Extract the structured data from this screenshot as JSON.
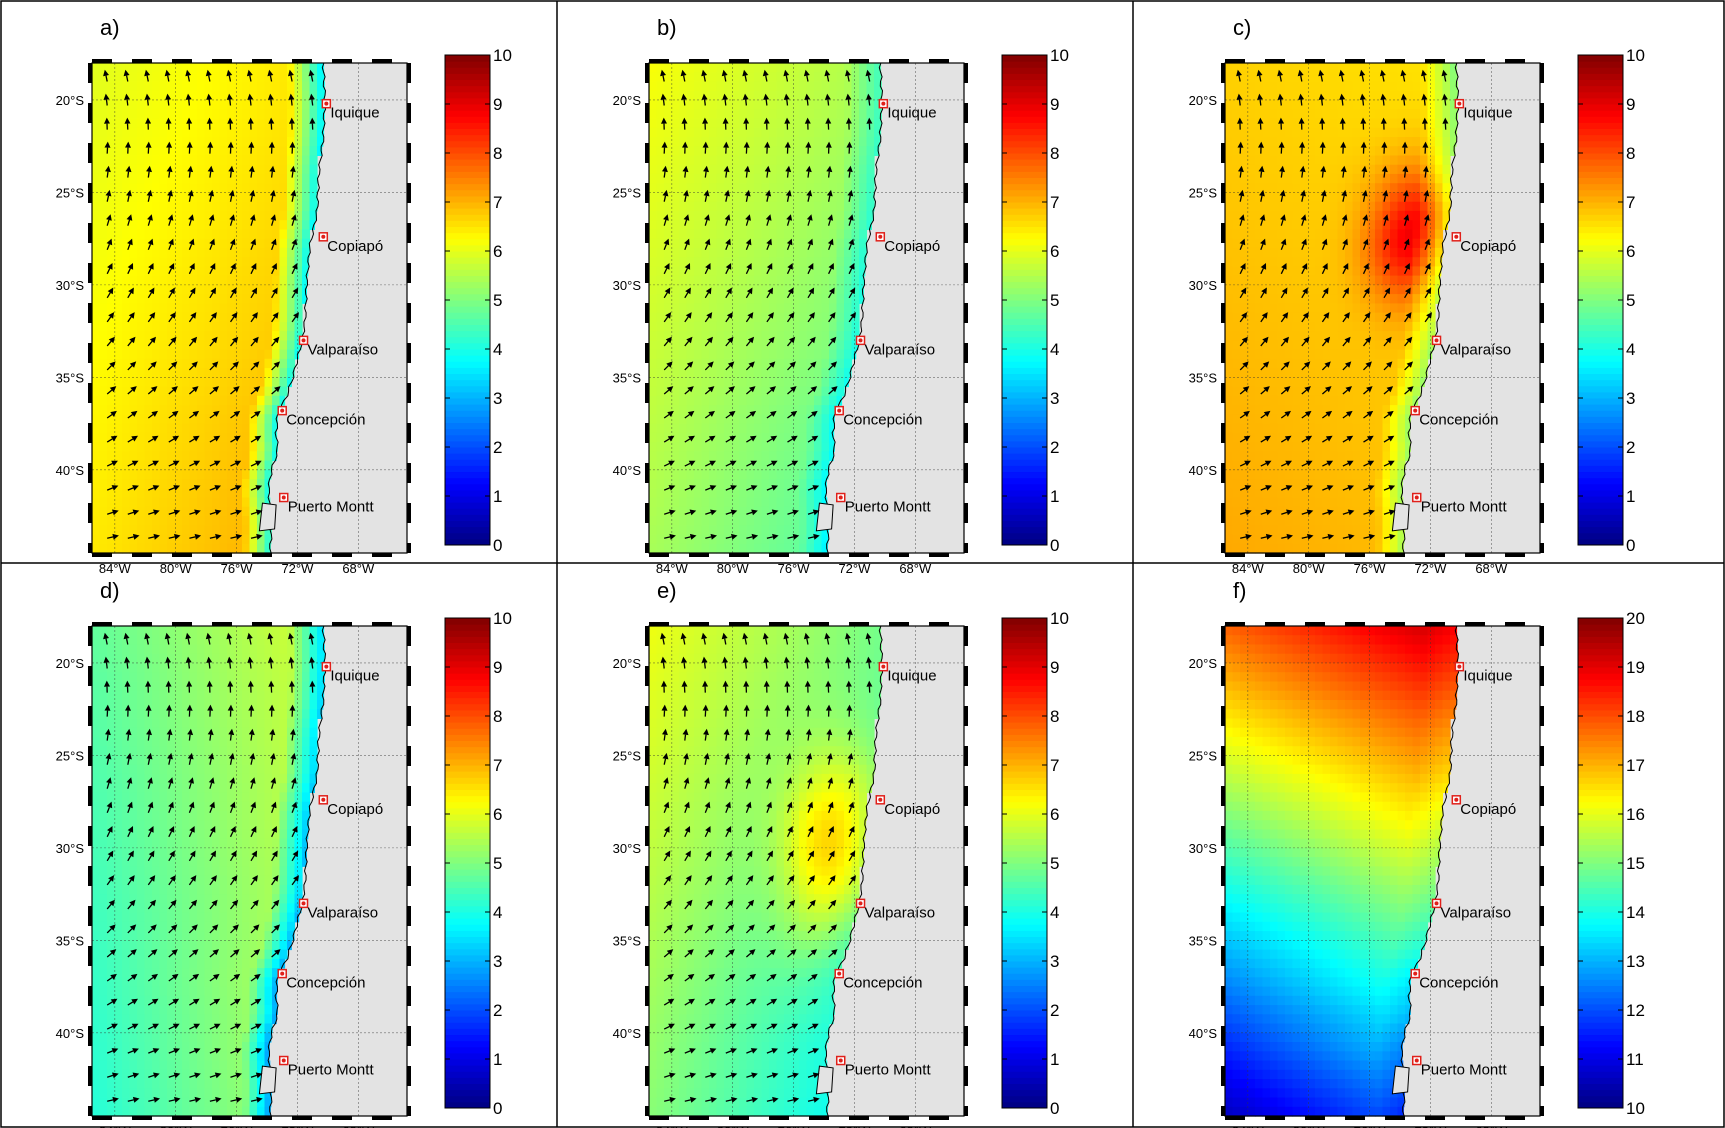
{
  "figure": {
    "colors": {
      "land": "#e3e3e3",
      "coast": "#000000",
      "city_marker": "#e0201a",
      "arrow": "#000000"
    },
    "lon_ticks": [
      "84°W",
      "80°W",
      "76°W",
      "72°W",
      "68°W"
    ],
    "lat_ticks": [
      "20°S",
      "25°S",
      "30°S",
      "35°S",
      "40°S"
    ],
    "cities": [
      "Iquique",
      "Copiapó",
      "Valparaíso",
      "Concepción",
      "Puerto Montt"
    ],
    "colormap": "jet"
  },
  "chart_data": [
    {
      "label": "a)",
      "type": "heatmap",
      "colorbar": {
        "min": 0,
        "max": 10,
        "ticks": [
          0,
          1,
          2,
          3,
          4,
          5,
          6,
          7,
          8,
          9,
          10
        ]
      },
      "field": {
        "base": 6.5,
        "dx": 0.3,
        "dy": 0.25,
        "coast": -3.0
      },
      "vectors": true
    },
    {
      "label": "b)",
      "type": "heatmap",
      "colorbar": {
        "min": 0,
        "max": 10,
        "ticks": [
          0,
          1,
          2,
          3,
          4,
          5,
          6,
          7,
          8,
          9,
          10
        ]
      },
      "field": {
        "base": 5.4,
        "dx": -0.4,
        "dy": -0.4,
        "coast": -1.0
      },
      "vectors": true
    },
    {
      "label": "c)",
      "type": "heatmap",
      "colorbar": {
        "min": 0,
        "max": 10,
        "ticks": [
          0,
          1,
          2,
          3,
          4,
          5,
          6,
          7,
          8,
          9,
          10
        ]
      },
      "field": {
        "base": 6.8,
        "dx": -0.1,
        "dy": 0.2,
        "coast": -1.5
      },
      "vectors": true
    },
    {
      "label": "d)",
      "type": "heatmap",
      "colorbar": {
        "min": 0,
        "max": 10,
        "ticks": [
          0,
          1,
          2,
          3,
          4,
          5,
          6,
          7,
          8,
          9,
          10
        ]
      },
      "field": {
        "base": 5.0,
        "dx": 0.6,
        "dy": -0.3,
        "coast": -2.5
      },
      "vectors": true
    },
    {
      "label": "e)",
      "type": "heatmap",
      "colorbar": {
        "min": 0,
        "max": 10,
        "ticks": [
          0,
          1,
          2,
          3,
          4,
          5,
          6,
          7,
          8,
          9,
          10
        ]
      },
      "field": {
        "base": 5.0,
        "dx": -0.6,
        "dy": -0.5,
        "coast": 0.0
      },
      "vectors": true
    },
    {
      "label": "f)",
      "type": "heatmap",
      "colorbar": {
        "min": 10,
        "max": 20,
        "ticks": [
          10,
          11,
          12,
          13,
          14,
          15,
          16,
          17,
          18,
          19,
          20
        ]
      },
      "field": {
        "base": 15.0,
        "dx": 0.8,
        "dy": -3.6,
        "coast": -0.6
      },
      "vectors": false
    }
  ]
}
